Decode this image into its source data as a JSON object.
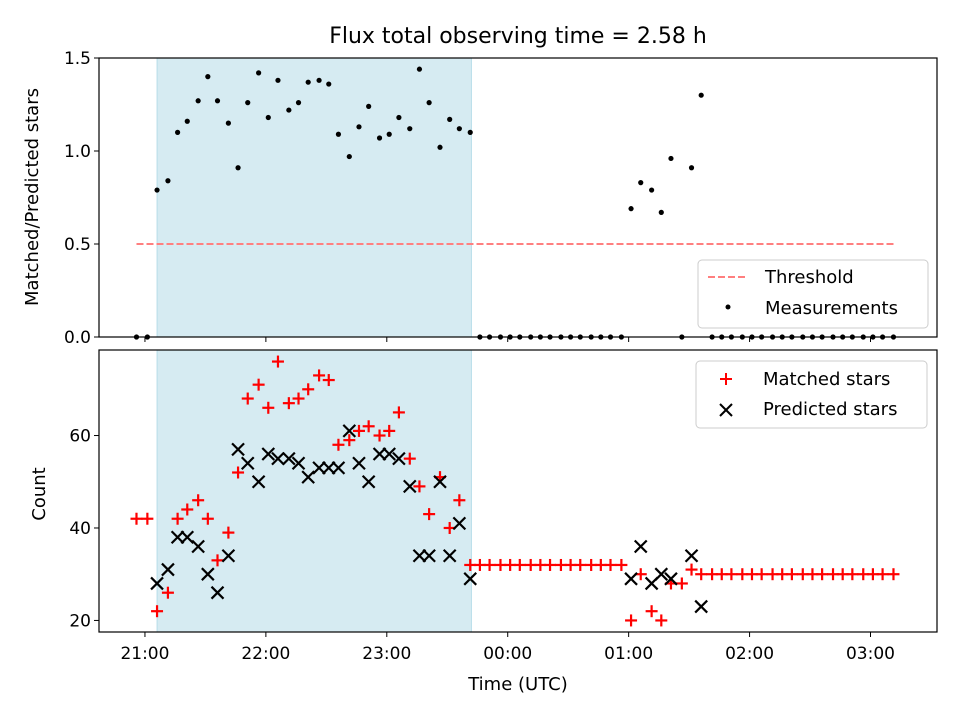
{
  "chart_data": [
    {
      "type": "scatter",
      "title": "Flux total observing time = 2.58 h",
      "xlabel": "",
      "ylabel": "Matched/Predicted stars",
      "ylim": [
        0,
        1.5
      ],
      "yticks": [
        0.0,
        0.5,
        1.0,
        1.5
      ],
      "ytick_labels": [
        "0.0",
        "0.5",
        "1.0",
        "1.5"
      ],
      "x_unit": "hours after 21:00 UTC",
      "xlim": [
        -0.38,
        6.55
      ],
      "shaded_span": [
        0.1,
        2.7
      ],
      "shade_color": "#add8e6",
      "threshold": {
        "name": "Threshold",
        "value": 0.5,
        "x_range": [
          -0.07,
          6.2
        ],
        "color": "#ff7f7f"
      },
      "legend_position": "lower right",
      "series": [
        {
          "name": "Measurements",
          "marker": "dot",
          "color": "#000000",
          "points": [
            [
              -0.07,
              0
            ],
            [
              0.02,
              0
            ],
            [
              0.1,
              0.79
            ],
            [
              0.19,
              0.84
            ],
            [
              0.27,
              1.1
            ],
            [
              0.35,
              1.16
            ],
            [
              0.44,
              1.27
            ],
            [
              0.52,
              1.4
            ],
            [
              0.6,
              1.27
            ],
            [
              0.69,
              1.15
            ],
            [
              0.77,
              0.91
            ],
            [
              0.85,
              1.26
            ],
            [
              0.94,
              1.42
            ],
            [
              1.02,
              1.18
            ],
            [
              1.1,
              1.38
            ],
            [
              1.19,
              1.22
            ],
            [
              1.27,
              1.26
            ],
            [
              1.35,
              1.37
            ],
            [
              1.44,
              1.38
            ],
            [
              1.52,
              1.36
            ],
            [
              1.6,
              1.09
            ],
            [
              1.69,
              0.97
            ],
            [
              1.77,
              1.13
            ],
            [
              1.85,
              1.24
            ],
            [
              1.94,
              1.07
            ],
            [
              2.02,
              1.09
            ],
            [
              2.1,
              1.18
            ],
            [
              2.19,
              1.12
            ],
            [
              2.27,
              1.44
            ],
            [
              2.35,
              1.26
            ],
            [
              2.44,
              1.02
            ],
            [
              2.52,
              1.17
            ],
            [
              2.6,
              1.12
            ],
            [
              2.69,
              1.1
            ],
            [
              2.77,
              0
            ],
            [
              2.85,
              0
            ],
            [
              2.94,
              0
            ],
            [
              3.02,
              0
            ],
            [
              3.1,
              0
            ],
            [
              3.19,
              0
            ],
            [
              3.27,
              0
            ],
            [
              3.35,
              0
            ],
            [
              3.44,
              0
            ],
            [
              3.52,
              0
            ],
            [
              3.6,
              0
            ],
            [
              3.69,
              0
            ],
            [
              3.77,
              0
            ],
            [
              3.85,
              0
            ],
            [
              3.94,
              0
            ],
            [
              4.02,
              0.69
            ],
            [
              4.1,
              0.83
            ],
            [
              4.19,
              0.79
            ],
            [
              4.27,
              0.67
            ],
            [
              4.35,
              0.96
            ],
            [
              4.44,
              0
            ],
            [
              4.52,
              0.91
            ],
            [
              4.6,
              1.3
            ],
            [
              4.69,
              0
            ],
            [
              4.77,
              0
            ],
            [
              4.85,
              0
            ],
            [
              4.94,
              0
            ],
            [
              5.02,
              0
            ],
            [
              5.1,
              0
            ],
            [
              5.19,
              0
            ],
            [
              5.27,
              0
            ],
            [
              5.35,
              0
            ],
            [
              5.44,
              0
            ],
            [
              5.52,
              0
            ],
            [
              5.6,
              0
            ],
            [
              5.69,
              0
            ],
            [
              5.77,
              0
            ],
            [
              5.85,
              0
            ],
            [
              5.94,
              0
            ],
            [
              6.02,
              0
            ],
            [
              6.1,
              0
            ],
            [
              6.19,
              0
            ]
          ]
        }
      ]
    },
    {
      "type": "scatter",
      "title": "",
      "xlabel": "Time (UTC)",
      "ylabel": "Count",
      "ylim": [
        17.5,
        78.5
      ],
      "yticks": [
        20,
        40,
        60
      ],
      "ytick_labels": [
        "20",
        "40",
        "60"
      ],
      "x_unit": "hours after 21:00 UTC",
      "xlim": [
        -0.38,
        6.55
      ],
      "xticks": [
        0,
        1,
        2,
        3,
        4,
        5,
        6
      ],
      "xtick_labels": [
        "21:00",
        "22:00",
        "23:00",
        "00:00",
        "01:00",
        "02:00",
        "03:00"
      ],
      "shaded_span": [
        0.1,
        2.7
      ],
      "shade_color": "#add8e6",
      "legend_position": "upper right",
      "series": [
        {
          "name": "Matched stars",
          "marker": "plus",
          "color": "#ff0000",
          "points": [
            [
              -0.07,
              42
            ],
            [
              0.02,
              42
            ],
            [
              0.1,
              22
            ],
            [
              0.19,
              26
            ],
            [
              0.27,
              42
            ],
            [
              0.35,
              44
            ],
            [
              0.44,
              46
            ],
            [
              0.52,
              42
            ],
            [
              0.6,
              33
            ],
            [
              0.69,
              39
            ],
            [
              0.77,
              52
            ],
            [
              0.85,
              68
            ],
            [
              0.94,
              71
            ],
            [
              1.02,
              66
            ],
            [
              1.1,
              76
            ],
            [
              1.19,
              67
            ],
            [
              1.27,
              68
            ],
            [
              1.35,
              70
            ],
            [
              1.44,
              73
            ],
            [
              1.52,
              72
            ],
            [
              1.6,
              58
            ],
            [
              1.69,
              59
            ],
            [
              1.77,
              61
            ],
            [
              1.85,
              62
            ],
            [
              1.94,
              60
            ],
            [
              2.02,
              61
            ],
            [
              2.1,
              65
            ],
            [
              2.19,
              55
            ],
            [
              2.27,
              49
            ],
            [
              2.35,
              43
            ],
            [
              2.44,
              51
            ],
            [
              2.52,
              40
            ],
            [
              2.6,
              46
            ],
            [
              2.69,
              32
            ],
            [
              2.77,
              32
            ],
            [
              2.85,
              32
            ],
            [
              2.94,
              32
            ],
            [
              3.02,
              32
            ],
            [
              3.1,
              32
            ],
            [
              3.19,
              32
            ],
            [
              3.27,
              32
            ],
            [
              3.35,
              32
            ],
            [
              3.44,
              32
            ],
            [
              3.52,
              32
            ],
            [
              3.6,
              32
            ],
            [
              3.69,
              32
            ],
            [
              3.77,
              32
            ],
            [
              3.85,
              32
            ],
            [
              3.94,
              32
            ],
            [
              4.02,
              20
            ],
            [
              4.1,
              30
            ],
            [
              4.19,
              22
            ],
            [
              4.27,
              20
            ],
            [
              4.35,
              28
            ],
            [
              4.44,
              28
            ],
            [
              4.52,
              31
            ],
            [
              4.6,
              30
            ],
            [
              4.69,
              30
            ],
            [
              4.77,
              30
            ],
            [
              4.85,
              30
            ],
            [
              4.94,
              30
            ],
            [
              5.02,
              30
            ],
            [
              5.1,
              30
            ],
            [
              5.19,
              30
            ],
            [
              5.27,
              30
            ],
            [
              5.35,
              30
            ],
            [
              5.44,
              30
            ],
            [
              5.52,
              30
            ],
            [
              5.6,
              30
            ],
            [
              5.69,
              30
            ],
            [
              5.77,
              30
            ],
            [
              5.85,
              30
            ],
            [
              5.94,
              30
            ],
            [
              6.02,
              30
            ],
            [
              6.1,
              30
            ],
            [
              6.19,
              30
            ]
          ]
        },
        {
          "name": "Predicted stars",
          "marker": "x",
          "color": "#000000",
          "points": [
            [
              0.1,
              28
            ],
            [
              0.19,
              31
            ],
            [
              0.27,
              38
            ],
            [
              0.35,
              38
            ],
            [
              0.44,
              36
            ],
            [
              0.52,
              30
            ],
            [
              0.6,
              26
            ],
            [
              0.69,
              34
            ],
            [
              0.77,
              57
            ],
            [
              0.85,
              54
            ],
            [
              0.94,
              50
            ],
            [
              1.02,
              56
            ],
            [
              1.1,
              55
            ],
            [
              1.19,
              55
            ],
            [
              1.27,
              54
            ],
            [
              1.35,
              51
            ],
            [
              1.44,
              53
            ],
            [
              1.52,
              53
            ],
            [
              1.6,
              53
            ],
            [
              1.69,
              61
            ],
            [
              1.77,
              54
            ],
            [
              1.85,
              50
            ],
            [
              1.94,
              56
            ],
            [
              2.02,
              56
            ],
            [
              2.1,
              55
            ],
            [
              2.19,
              49
            ],
            [
              2.27,
              34
            ],
            [
              2.35,
              34
            ],
            [
              2.44,
              50
            ],
            [
              2.52,
              34
            ],
            [
              2.6,
              41
            ],
            [
              2.69,
              29
            ],
            [
              4.02,
              29
            ],
            [
              4.1,
              36
            ],
            [
              4.19,
              28
            ],
            [
              4.27,
              30
            ],
            [
              4.35,
              29
            ],
            [
              4.52,
              34
            ],
            [
              4.6,
              23
            ]
          ]
        }
      ]
    }
  ],
  "legend_top": {
    "threshold_label": "Threshold",
    "measurements_label": "Measurements"
  },
  "legend_bottom": {
    "matched_label": "Matched stars",
    "predicted_label": "Predicted stars"
  }
}
